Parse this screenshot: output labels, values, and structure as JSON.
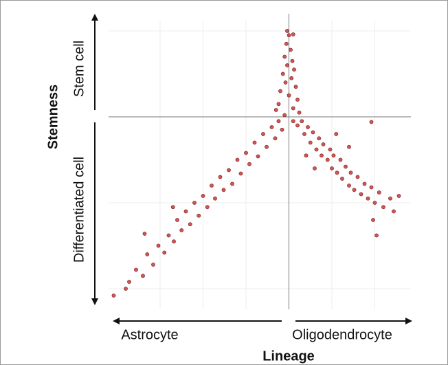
{
  "chart_data": {
    "type": "scatter",
    "x_label": "Lineage",
    "y_label": "Stemness",
    "x_left_label": "Astrocyte",
    "x_right_label": "Oligodendrocyte",
    "y_top_label": "Stem cell",
    "y_bottom_label": "Differentiated cell",
    "xlim": [
      -2.1,
      1.42
    ],
    "ylim": [
      -2.24,
      1.12
    ],
    "xticks": [
      -1.5,
      -1,
      -0.5,
      0,
      0.5,
      1
    ],
    "yticks": [
      -2,
      -1,
      0,
      1
    ],
    "grid": true,
    "reference_lines": {
      "x": 0,
      "y": 0
    },
    "color": "#c53a3a",
    "x": [
      -2.04,
      -1.9,
      -1.86,
      -1.78,
      -1.7,
      -1.65,
      -1.58,
      -1.52,
      -1.45,
      -1.4,
      -1.34,
      -1.3,
      -1.25,
      -1.2,
      -1.15,
      -1.1,
      -1.05,
      -1.0,
      -0.95,
      -0.9,
      -0.86,
      -0.8,
      -0.76,
      -0.7,
      -0.66,
      -0.6,
      -0.56,
      -0.5,
      -0.46,
      -0.4,
      -0.36,
      -0.3,
      -0.26,
      -0.2,
      -0.16,
      -0.12,
      -0.08,
      -0.05,
      -1.68,
      -1.35,
      -0.02,
      0.0,
      0.05,
      -0.03,
      0.02,
      -0.05,
      0.04,
      -0.02,
      0.06,
      -0.07,
      0.03,
      -0.04,
      0.08,
      -0.1,
      0.0,
      0.1,
      -0.12,
      0.05,
      -0.15,
      0.12,
      0.05,
      0.1,
      0.15,
      0.18,
      0.22,
      0.25,
      0.28,
      0.32,
      0.35,
      0.38,
      0.4,
      0.45,
      0.48,
      0.5,
      0.52,
      0.56,
      0.6,
      0.62,
      0.66,
      0.7,
      0.72,
      0.76,
      0.8,
      0.84,
      0.88,
      0.92,
      0.96,
      1.0,
      1.05,
      1.1,
      1.18,
      1.22,
      1.28,
      0.98,
      1.02,
      0.96,
      0.3,
      0.2,
      0.55,
      0.7
    ],
    "y": [
      -2.08,
      -2.0,
      -1.92,
      -1.78,
      -1.85,
      -1.6,
      -1.72,
      -1.5,
      -1.58,
      -1.38,
      -1.45,
      -1.2,
      -1.32,
      -1.1,
      -1.25,
      -1.0,
      -1.15,
      -0.92,
      -1.05,
      -0.8,
      -0.95,
      -0.7,
      -0.85,
      -0.62,
      -0.78,
      -0.5,
      -0.66,
      -0.42,
      -0.55,
      -0.3,
      -0.46,
      -0.2,
      -0.35,
      -0.12,
      -0.25,
      -0.05,
      -0.15,
      0.02,
      -1.36,
      -1.05,
      1.0,
      0.95,
      0.96,
      0.85,
      0.78,
      0.7,
      0.65,
      0.6,
      0.55,
      0.5,
      0.45,
      0.4,
      0.35,
      0.3,
      0.25,
      0.2,
      0.15,
      0.1,
      0.08,
      0.05,
      -0.05,
      -0.1,
      -0.05,
      -0.2,
      -0.12,
      -0.3,
      -0.18,
      -0.38,
      -0.25,
      -0.45,
      -0.32,
      -0.5,
      -0.38,
      -0.6,
      -0.45,
      -0.65,
      -0.5,
      -0.72,
      -0.58,
      -0.8,
      -0.65,
      -0.85,
      -0.7,
      -0.9,
      -0.78,
      -0.95,
      -0.82,
      -1.0,
      -0.88,
      -1.05,
      -0.95,
      -1.1,
      -0.92,
      -1.2,
      -1.38,
      -0.06,
      -0.6,
      -0.45,
      -0.2,
      -0.35
    ]
  }
}
